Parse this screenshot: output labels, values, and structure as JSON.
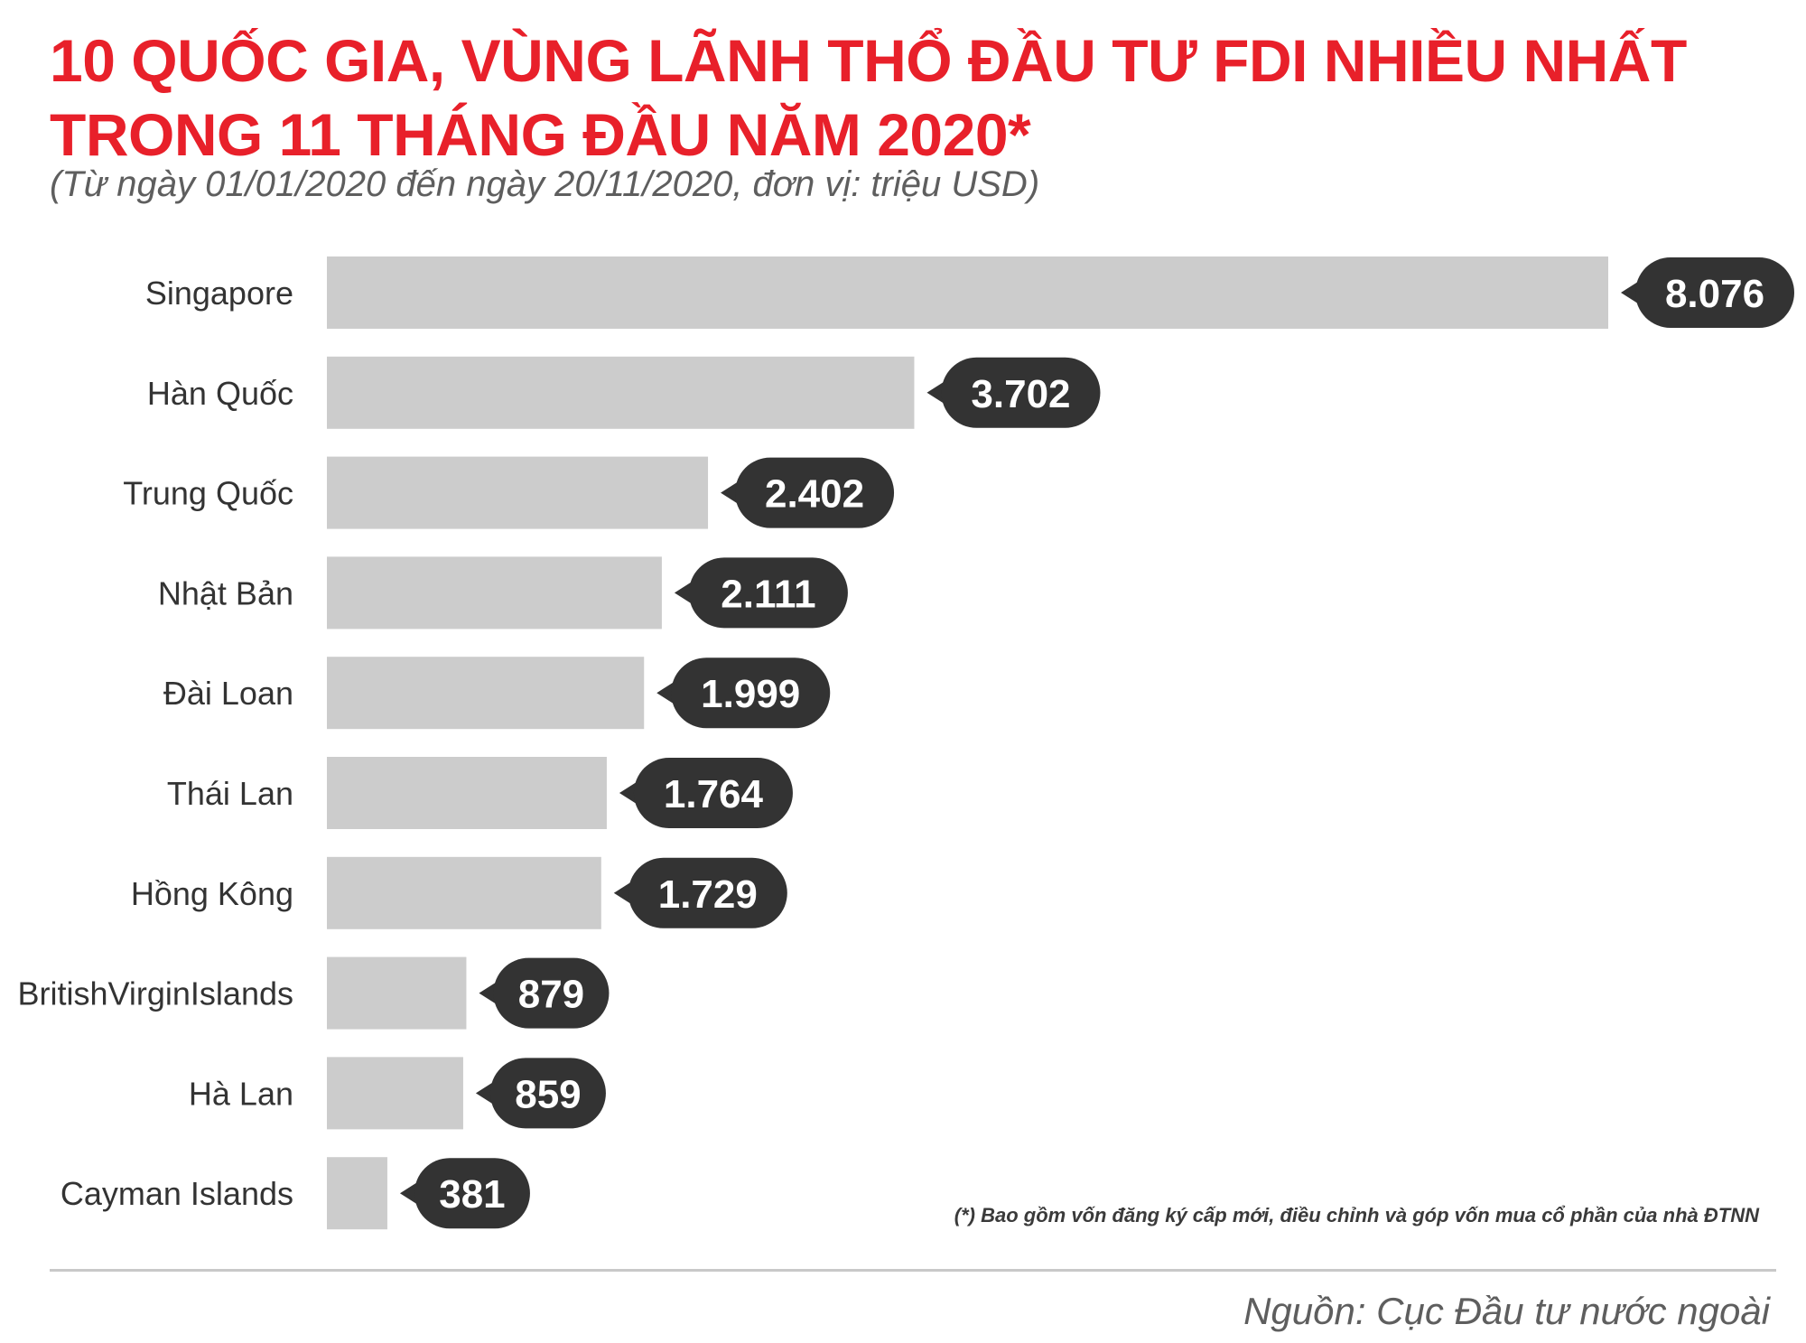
{
  "header": {
    "title_line1": "10 QUỐC GIA, VÙNG LÃNH THỔ ĐẦU TƯ FDI NHIỀU NHẤT",
    "title_line2": "TRONG 11 THÁNG ĐẦU NĂM 2020*",
    "subtitle": "(Từ ngày 01/01/2020 đến ngày 20/11/2020, đơn vị: triệu USD)"
  },
  "footnote": "(*) Bao gồm vốn đăng ký cấp mới, điều chỉnh và góp vốn mua cổ phần của nhà ĐTNN",
  "source": "Nguồn: Cục Đầu tư nước ngoài",
  "colors": {
    "title": "#e8202a",
    "bar": "#cccccc",
    "bubble": "#333333",
    "bubble_text": "#ffffff"
  },
  "chart_data": {
    "type": "bar",
    "orientation": "horizontal",
    "title": "10 QUỐC GIA, VÙNG LÃNH THỔ ĐẦU TƯ FDI NHIỀU NHẤT TRONG 11 THÁNG ĐẦU NĂM 2020*",
    "subtitle": "(Từ ngày 01/01/2020 đến ngày 20/11/2020, đơn vị: triệu USD)",
    "categories": [
      "Singapore",
      "Hàn Quốc",
      "Trung Quốc",
      "Nhật Bản",
      "Đài Loan",
      "Thái Lan",
      "Hồng Kông",
      "BritishVirginIslands",
      "Hà Lan",
      "Cayman Islands"
    ],
    "values": [
      8076,
      3702,
      2402,
      2111,
      1999,
      1764,
      1729,
      879,
      859,
      381
    ],
    "value_labels": [
      "8.076",
      "3.702",
      "2.402",
      "2.111",
      "1.999",
      "1.764",
      "1.729",
      "879",
      "859",
      "381"
    ],
    "xlim": [
      0,
      8076
    ],
    "grid": false,
    "legend": "none"
  }
}
